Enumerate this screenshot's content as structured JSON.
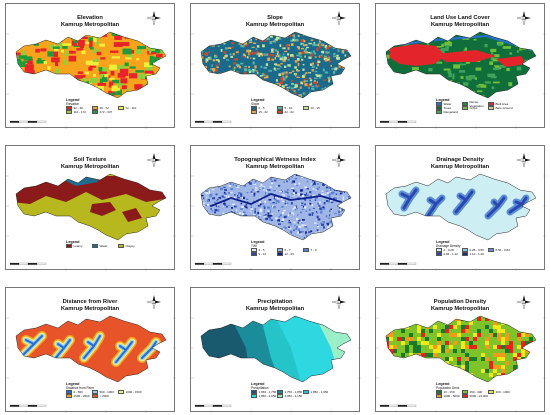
{
  "panels": [
    {
      "title1": "Elevation",
      "title2": "Kamrup Metropolitan",
      "legend_title": "Legend",
      "legend_sub": "Elevation",
      "legend_items": [
        {
          "label": "32 - 49",
          "color": "#e8242a"
        },
        {
          "label": "49 - 72",
          "color": "#f7a31c"
        },
        {
          "label": "72 - 110",
          "color": "#f2ef3a"
        },
        {
          "label": "110 - 172",
          "color": "#8cd13a"
        },
        {
          "label": "172 - 337",
          "color": "#1f9b3a"
        }
      ]
    },
    {
      "title1": "Slope",
      "title2": "Kamrup Metropolitan",
      "legend_title": "Legend",
      "legend_sub": "Slope",
      "legend_items": [
        {
          "label": "0 - 5",
          "color": "#1b6a8c"
        },
        {
          "label": "5 - 10",
          "color": "#58b6a7"
        },
        {
          "label": "10 - 15",
          "color": "#c6e39c"
        },
        {
          "label": "15 - 22",
          "color": "#e9a64b"
        },
        {
          "label": "22 - 62",
          "color": "#c84a2a"
        }
      ]
    },
    {
      "title1": "Land Use Land Cover",
      "title2": "Kamrup Metropolitan",
      "legend_title": "Legend",
      "legend_sub": "",
      "legend_items": [
        {
          "label": "Water",
          "color": "#2a6fd6"
        },
        {
          "label": "Dense Vegetation",
          "color": "#1f8a3a"
        },
        {
          "label": "Built Area",
          "color": "#e3242b"
        },
        {
          "label": "Trees",
          "color": "#0f6e3a"
        },
        {
          "label": "Crops",
          "color": "#6fbf3a"
        },
        {
          "label": "Bare Ground",
          "color": "#d9c79b"
        },
        {
          "label": "Rangeland",
          "color": "#3fa35a"
        }
      ]
    },
    {
      "title1": "Soil Texture",
      "title2": "Kamrup Metropolitan",
      "legend_title": "Legend",
      "legend_sub": "",
      "legend_items": [
        {
          "label": "Loamy",
          "color": "#8b1a1a"
        },
        {
          "label": "Water",
          "color": "#1f6c8c"
        },
        {
          "label": "Clayey",
          "color": "#b7b81d"
        }
      ]
    },
    {
      "title1": "Topographical Wetness Index",
      "title2": "Kamrup Metropolitan",
      "legend_title": "Legend",
      "legend_sub": "TWI",
      "legend_items": [
        {
          "label": "2 - 5",
          "color": "#dfe8f7"
        },
        {
          "label": "5 - 7",
          "color": "#9fb6e6"
        },
        {
          "label": "7 - 9",
          "color": "#5a7fd2"
        },
        {
          "label": "9 - 12",
          "color": "#2946b4"
        },
        {
          "label": "12 - 23",
          "color": "#0d1f8a"
        }
      ]
    },
    {
      "title1": "Drainage Density",
      "title2": "Kamrup Metropolitan",
      "legend_title": "Legend",
      "legend_sub": "Drainage Density",
      "legend_items": [
        {
          "label": "0 - 0.28",
          "color": "#cdeef2"
        },
        {
          "label": "0.28 - 0.56",
          "color": "#8ec9e6"
        },
        {
          "label": "0.56 - 0.84",
          "color": "#5a8fd6"
        },
        {
          "label": "0.84 - 1.12",
          "color": "#2d47b0"
        },
        {
          "label": "1.12 - 1.40",
          "color": "#1a2f8a"
        }
      ]
    },
    {
      "title1": "Distance from River",
      "title2": "Kamrup Metropolitan",
      "legend_title": "Legend",
      "legend_sub": "Distance from River",
      "legend_items": [
        {
          "label": "0 - 500",
          "color": "#2a6ad6"
        },
        {
          "label": "500 - 1000",
          "color": "#8fd0e8"
        },
        {
          "label": "1000 - 1500",
          "color": "#f2ef8a"
        },
        {
          "label": "1500 - 2000",
          "color": "#f7a31c"
        },
        {
          "label": "> 2000",
          "color": "#e8542a"
        }
      ]
    },
    {
      "title1": "Precipitation",
      "title2": "Kamrup Metropolitan",
      "legend_title": "Legend",
      "legend_sub": "Precipitation",
      "legend_items": [
        {
          "label": "1,650 - 1,750",
          "color": "#1a5a6e"
        },
        {
          "label": "1,750 - 1,850",
          "color": "#1a8c9a"
        },
        {
          "label": "1,850 - 1,950",
          "color": "#24c4c8"
        },
        {
          "label": "1,950 - 2,050",
          "color": "#2ed8e0"
        },
        {
          "label": "2,050 - 2,150",
          "color": "#9aeec8"
        }
      ]
    },
    {
      "title1": "Population Density",
      "title2": "Kamrup Metropolitan",
      "legend_title": "Legend",
      "legend_sub": "Population Dens",
      "legend_items": [
        {
          "label": "10 - 150",
          "color": "#1a7a2a"
        },
        {
          "label": "150 - 400",
          "color": "#7ec32a"
        },
        {
          "label": "400 - 1000",
          "color": "#f2e81a"
        },
        {
          "label": "1000 - 5000",
          "color": "#f29a1a"
        },
        {
          "label": "5000 - 21,000",
          "color": "#e8241a"
        }
      ]
    }
  ]
}
